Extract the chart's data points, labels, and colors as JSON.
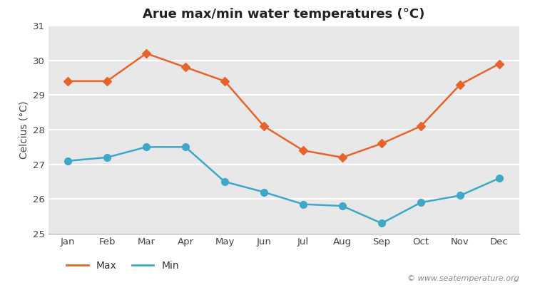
{
  "title": "Arue max/min water temperatures (°C)",
  "ylabel": "Celcius (°C)",
  "months": [
    "Jan",
    "Feb",
    "Mar",
    "Apr",
    "May",
    "Jun",
    "Jul",
    "Aug",
    "Sep",
    "Oct",
    "Nov",
    "Dec"
  ],
  "max_temps": [
    29.4,
    29.4,
    30.2,
    29.8,
    29.4,
    28.1,
    27.4,
    27.2,
    27.6,
    28.1,
    29.3,
    29.9
  ],
  "min_temps": [
    27.1,
    27.2,
    27.5,
    27.5,
    26.5,
    26.2,
    25.85,
    25.8,
    25.3,
    25.9,
    26.1,
    26.6
  ],
  "max_color": "#e8632a",
  "min_color": "#3ea8c8",
  "background_color": "#ffffff",
  "plot_bg_color": "#e8e8e8",
  "ylim": [
    25,
    31
  ],
  "yticks": [
    25,
    26,
    27,
    28,
    29,
    30,
    31
  ],
  "grid_color": "#ffffff",
  "watermark": "© www.seatemperature.org",
  "title_fontsize": 13,
  "label_fontsize": 10,
  "tick_fontsize": 9.5,
  "marker_max": "D",
  "marker_min": "o",
  "markersize_max": 6,
  "markersize_min": 7,
  "linewidth": 1.8
}
